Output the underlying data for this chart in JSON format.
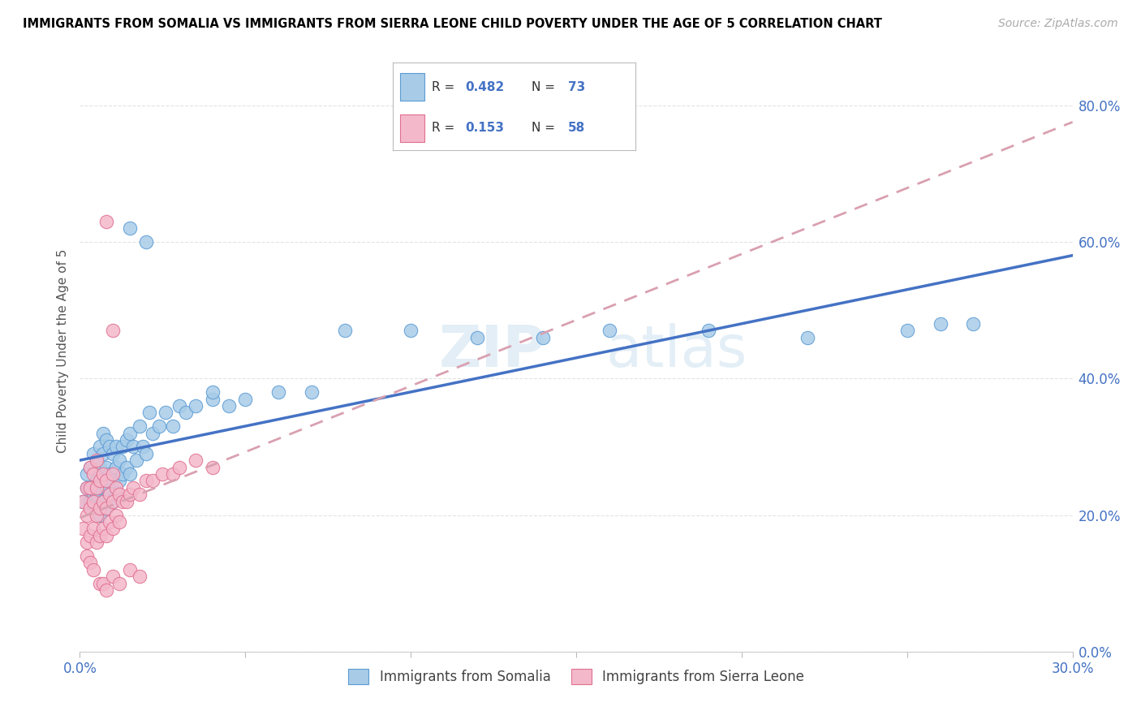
{
  "title": "IMMIGRANTS FROM SOMALIA VS IMMIGRANTS FROM SIERRA LEONE CHILD POVERTY UNDER THE AGE OF 5 CORRELATION CHART",
  "source": "Source: ZipAtlas.com",
  "xlim": [
    0.0,
    0.3
  ],
  "ylim": [
    0.0,
    0.88
  ],
  "ylabel": "Child Poverty Under the Age of 5",
  "watermark_zip": "ZIP",
  "watermark_atlas": "atlas",
  "somalia_R": 0.482,
  "somalia_N": 73,
  "sierraleone_R": 0.153,
  "sierraleone_N": 58,
  "somalia_color": "#a8cce8",
  "somalia_edge_color": "#5b9bd5",
  "sierraleone_color": "#f4b8cb",
  "sierraleone_edge_color": "#e07090",
  "somalia_line_color": "#4472c4",
  "sierraleone_line_color": "#d9a0b0",
  "title_fontsize": 10.5,
  "source_fontsize": 10,
  "tick_label_color": "#4472c4",
  "ylabel_color": "#555555",
  "grid_color": "#dddddd",
  "somalia_x": [
    0.001,
    0.002,
    0.002,
    0.003,
    0.003,
    0.003,
    0.004,
    0.004,
    0.004,
    0.005,
    0.005,
    0.005,
    0.005,
    0.006,
    0.006,
    0.006,
    0.006,
    0.007,
    0.007,
    0.007,
    0.007,
    0.008,
    0.008,
    0.008,
    0.008,
    0.009,
    0.009,
    0.009,
    0.01,
    0.01,
    0.01,
    0.011,
    0.011,
    0.011,
    0.012,
    0.012,
    0.013,
    0.013,
    0.014,
    0.014,
    0.015,
    0.015,
    0.016,
    0.017,
    0.018,
    0.019,
    0.02,
    0.021,
    0.022,
    0.024,
    0.026,
    0.028,
    0.03,
    0.032,
    0.035,
    0.04,
    0.045,
    0.05,
    0.06,
    0.07,
    0.08,
    0.1,
    0.12,
    0.14,
    0.16,
    0.19,
    0.22,
    0.25,
    0.27,
    0.015,
    0.02,
    0.04,
    0.26
  ],
  "somalia_y": [
    0.22,
    0.24,
    0.26,
    0.22,
    0.24,
    0.27,
    0.21,
    0.23,
    0.29,
    0.22,
    0.25,
    0.21,
    0.23,
    0.2,
    0.24,
    0.27,
    0.3,
    0.22,
    0.26,
    0.29,
    0.32,
    0.21,
    0.24,
    0.27,
    0.31,
    0.23,
    0.26,
    0.3,
    0.22,
    0.25,
    0.29,
    0.23,
    0.27,
    0.3,
    0.25,
    0.28,
    0.26,
    0.3,
    0.27,
    0.31,
    0.26,
    0.32,
    0.3,
    0.28,
    0.33,
    0.3,
    0.29,
    0.35,
    0.32,
    0.33,
    0.35,
    0.33,
    0.36,
    0.35,
    0.36,
    0.37,
    0.36,
    0.37,
    0.38,
    0.38,
    0.47,
    0.47,
    0.46,
    0.46,
    0.47,
    0.47,
    0.46,
    0.47,
    0.48,
    0.62,
    0.6,
    0.38,
    0.48
  ],
  "sierraleone_x": [
    0.001,
    0.001,
    0.002,
    0.002,
    0.002,
    0.003,
    0.003,
    0.003,
    0.003,
    0.004,
    0.004,
    0.004,
    0.005,
    0.005,
    0.005,
    0.005,
    0.006,
    0.006,
    0.006,
    0.007,
    0.007,
    0.007,
    0.008,
    0.008,
    0.008,
    0.009,
    0.009,
    0.01,
    0.01,
    0.01,
    0.011,
    0.011,
    0.012,
    0.012,
    0.013,
    0.014,
    0.015,
    0.016,
    0.018,
    0.02,
    0.022,
    0.025,
    0.028,
    0.03,
    0.035,
    0.04,
    0.002,
    0.003,
    0.004,
    0.006,
    0.007,
    0.008,
    0.01,
    0.012,
    0.015,
    0.018,
    0.008,
    0.01
  ],
  "sierraleone_y": [
    0.18,
    0.22,
    0.16,
    0.2,
    0.24,
    0.17,
    0.21,
    0.24,
    0.27,
    0.18,
    0.22,
    0.26,
    0.16,
    0.2,
    0.24,
    0.28,
    0.17,
    0.21,
    0.25,
    0.18,
    0.22,
    0.26,
    0.17,
    0.21,
    0.25,
    0.19,
    0.23,
    0.18,
    0.22,
    0.26,
    0.2,
    0.24,
    0.19,
    0.23,
    0.22,
    0.22,
    0.23,
    0.24,
    0.23,
    0.25,
    0.25,
    0.26,
    0.26,
    0.27,
    0.28,
    0.27,
    0.14,
    0.13,
    0.12,
    0.1,
    0.1,
    0.09,
    0.11,
    0.1,
    0.12,
    0.11,
    0.63,
    0.47
  ]
}
